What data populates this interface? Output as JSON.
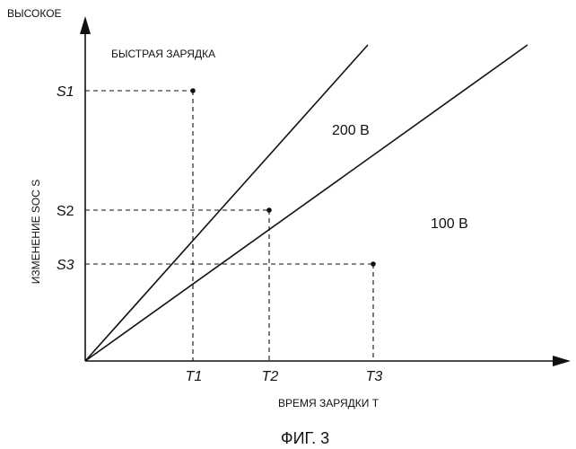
{
  "y_axis": {
    "top_label": "ВЫСОКОЕ",
    "title": "ИЗМЕНЕНИЕ SOC S"
  },
  "x_axis": {
    "title": "ВРЕМЯ ЗАРЯДКИ T"
  },
  "annotation": "БЫСТРАЯ ЗАРЯДКА",
  "lines": {
    "line_200": "200 В",
    "line_100": "100 В"
  },
  "points": [
    {
      "s": "S1",
      "t": "T1"
    },
    {
      "s": "S2",
      "t": "T2"
    },
    {
      "s": "S3",
      "t": "T3"
    }
  ],
  "caption": "ФИГ. 3"
}
